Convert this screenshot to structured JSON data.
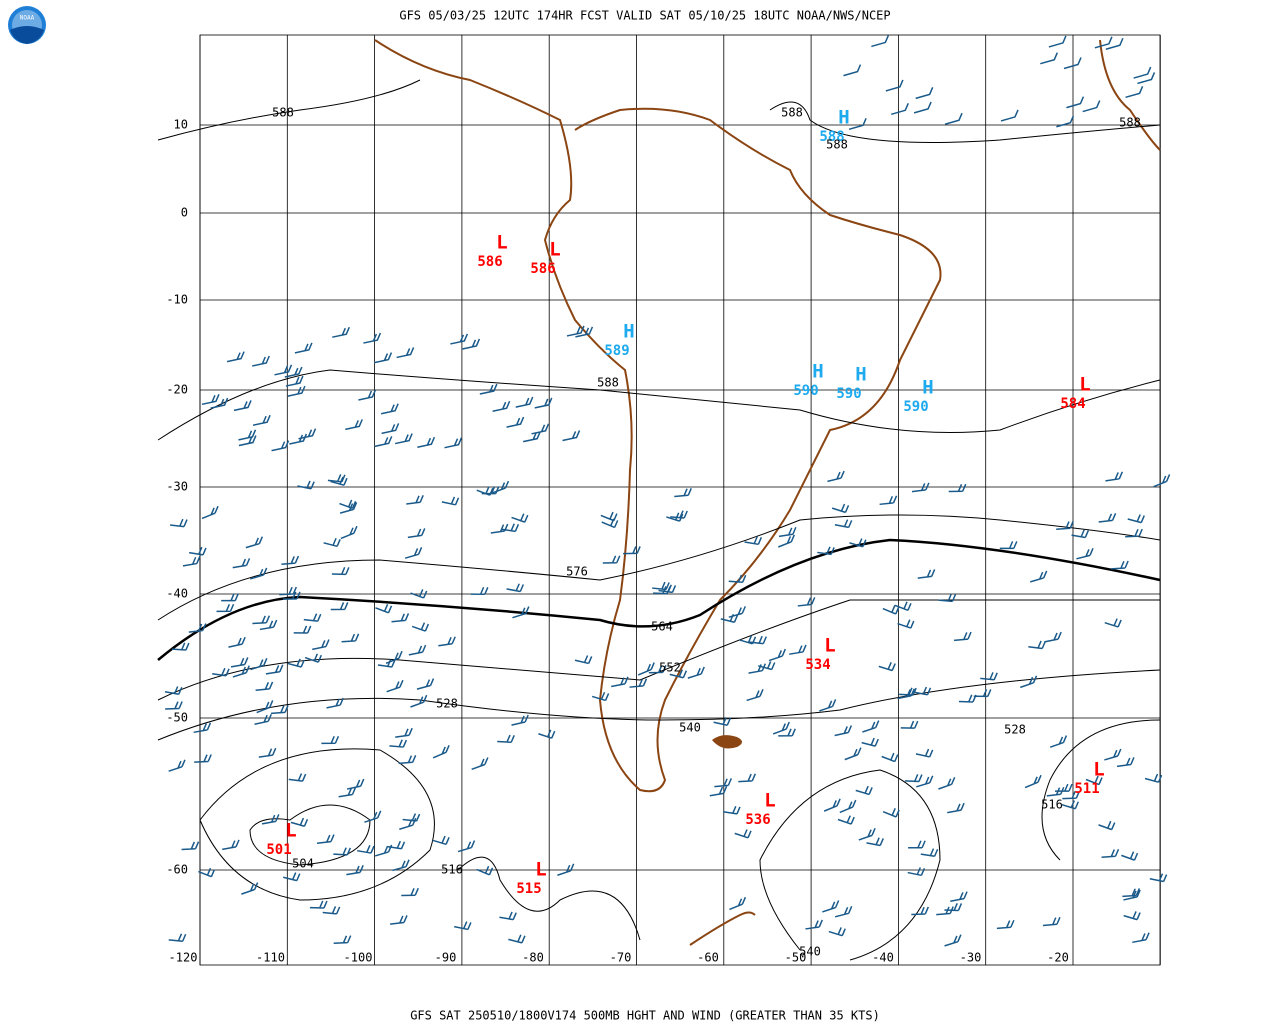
{
  "header": {
    "title": "GFS 05/03/25 12UTC 174HR FCST VALID SAT 05/10/25 18UTC NOAA/NWS/NCEP",
    "logo": "NOAA"
  },
  "footer": {
    "caption": "GFS SAT 250510/1800V174 500MB HGHT AND WIND (GREATER THAN 35 KTS)"
  },
  "lat_labels": [
    10,
    0,
    -10,
    -20,
    -30,
    -40,
    -50,
    -60
  ],
  "lon_labels": [
    -120,
    -110,
    -100,
    -90,
    -80,
    -70,
    -60,
    -50,
    -40,
    -30,
    -20
  ],
  "systems": [
    {
      "letter": "L",
      "value": 586
    },
    {
      "letter": "L",
      "value": 586
    },
    {
      "letter": "H",
      "value": 589
    },
    {
      "letter": "H",
      "value": 588
    },
    {
      "letter": "H",
      "value": 590
    },
    {
      "letter": "H",
      "value": 590
    },
    {
      "letter": "H",
      "value": 590
    },
    {
      "letter": "L",
      "value": 584
    },
    {
      "letter": "L",
      "value": 534
    },
    {
      "letter": "L",
      "value": 536
    },
    {
      "letter": "L",
      "value": 501
    },
    {
      "letter": "L",
      "value": 515
    },
    {
      "letter": "L",
      "value": 511
    }
  ],
  "contour_labels": [
    588,
    588,
    588,
    588,
    588,
    576,
    564,
    552,
    540,
    528,
    528,
    516,
    516,
    504,
    540
  ]
}
